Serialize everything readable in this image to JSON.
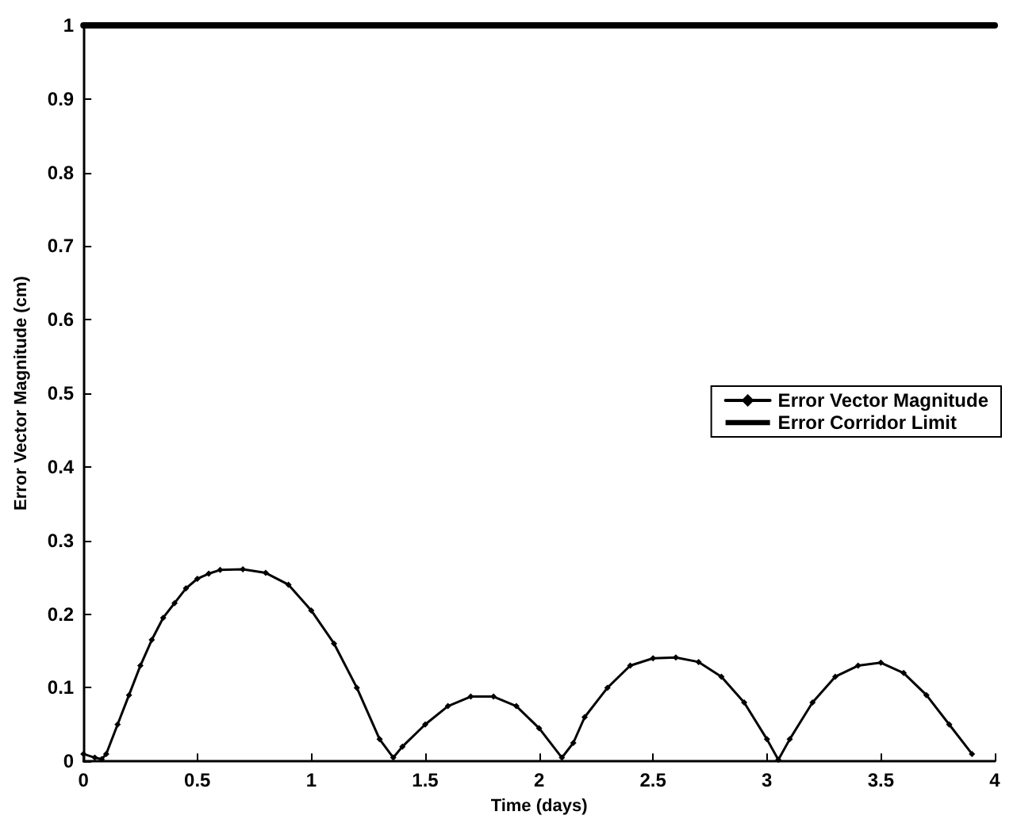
{
  "chart_data": {
    "type": "line",
    "xlabel": "Time (days)",
    "ylabel": "Error Vector Magnitude (cm)",
    "xlim": [
      0,
      4
    ],
    "xticks": [
      0,
      0.5,
      1,
      1.5,
      2,
      2.5,
      3,
      3.5,
      4
    ],
    "ylim": [
      0,
      1
    ],
    "yticks": [
      0,
      0.1,
      0.2,
      0.3,
      0.4,
      0.5,
      0.6,
      0.7,
      0.8,
      0.9,
      1
    ],
    "grid": false,
    "legend": "right",
    "line_style": "solid",
    "series": [
      {
        "name": "Error Vector Magnitude",
        "color": "#000000",
        "marker": "diamond",
        "x": [
          0,
          0.05,
          0.08,
          0.1,
          0.15,
          0.2,
          0.25,
          0.3,
          0.35,
          0.4,
          0.45,
          0.5,
          0.55,
          0.6,
          0.7,
          0.8,
          0.9,
          1.0,
          1.1,
          1.2,
          1.3,
          1.36,
          1.4,
          1.5,
          1.6,
          1.7,
          1.8,
          1.9,
          2.0,
          2.1,
          2.15,
          2.2,
          2.3,
          2.4,
          2.5,
          2.6,
          2.7,
          2.8,
          2.9,
          3.0,
          3.05,
          3.1,
          3.2,
          3.3,
          3.4,
          3.5,
          3.6,
          3.7,
          3.8,
          3.9
        ],
        "values": [
          0.01,
          0.005,
          0.003,
          0.01,
          0.05,
          0.09,
          0.13,
          0.165,
          0.195,
          0.215,
          0.235,
          0.248,
          0.255,
          0.26,
          0.261,
          0.256,
          0.24,
          0.205,
          0.16,
          0.1,
          0.03,
          0.005,
          0.02,
          0.05,
          0.075,
          0.088,
          0.088,
          0.075,
          0.045,
          0.005,
          0.025,
          0.06,
          0.1,
          0.13,
          0.14,
          0.141,
          0.135,
          0.115,
          0.08,
          0.03,
          0.002,
          0.03,
          0.08,
          0.115,
          0.13,
          0.134,
          0.12,
          0.09,
          0.05,
          0.01
        ]
      },
      {
        "name": "Error Corridor Limit",
        "color": "#000000",
        "marker": "none",
        "x": [
          0,
          4
        ],
        "values": [
          1,
          1
        ]
      }
    ]
  }
}
